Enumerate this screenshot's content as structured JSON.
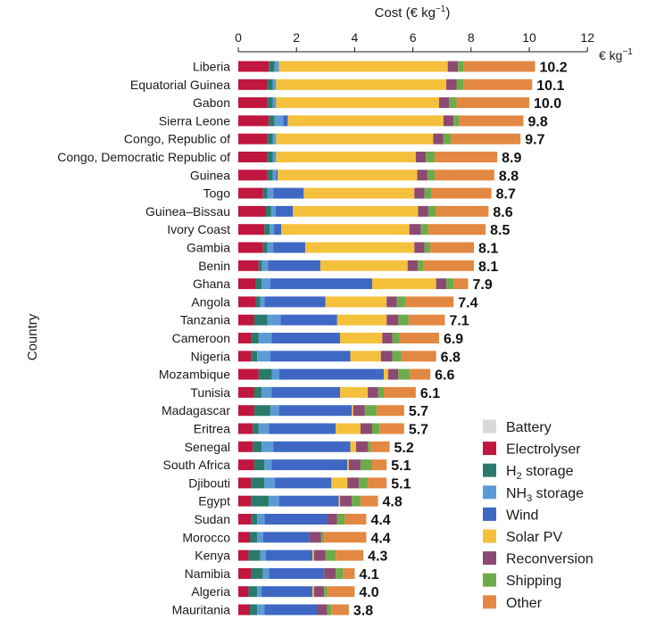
{
  "chart_data": {
    "type": "bar",
    "orientation": "horizontal",
    "stacked": true,
    "title": "",
    "xlabel": "Cost (€ kg",
    "xlabel_sup": "−1",
    "xlabel_close": ")",
    "ylabel": "Country",
    "unit_label": "€ kg",
    "unit_sup": "−1",
    "xlim": [
      0,
      12
    ],
    "x_ticks": [
      "0",
      "2",
      "4",
      "6",
      "8",
      "10",
      "12"
    ],
    "legend": {
      "position": "bottom-right",
      "entries": [
        {
          "key": "battery",
          "label": "Battery",
          "sub": ""
        },
        {
          "key": "electrolyser",
          "label": "Electrolyser",
          "sub": ""
        },
        {
          "key": "h2_storage",
          "label": "H",
          "sub": "2",
          "label_rest": " storage"
        },
        {
          "key": "nh3_storage",
          "label": "NH",
          "sub": "3",
          "label_rest": " storage"
        },
        {
          "key": "wind",
          "label": "Wind",
          "sub": ""
        },
        {
          "key": "solar_pv",
          "label": "Solar PV",
          "sub": ""
        },
        {
          "key": "reconversion",
          "label": "Reconversion",
          "sub": ""
        },
        {
          "key": "shipping",
          "label": "Shipping",
          "sub": ""
        },
        {
          "key": "other",
          "label": "Other",
          "sub": ""
        }
      ]
    },
    "colors": {
      "battery": "#d9d9d9",
      "electrolyser": "#c0163f",
      "h2_storage": "#2a7a6b",
      "nh3_storage": "#5b9bd5",
      "wind": "#3f68c4",
      "solar_pv": "#f5c13c",
      "reconversion": "#8c4a72",
      "shipping": "#6cab4c",
      "other": "#e38842"
    },
    "component_order": [
      "battery",
      "electrolyser",
      "h2_storage",
      "nh3_storage",
      "wind",
      "solar_pv",
      "reconversion",
      "shipping",
      "other"
    ],
    "countries": [
      {
        "name": "Liberia",
        "total": "10.2",
        "values": {
          "battery": 0,
          "electrolyser": 1.05,
          "h2_storage": 0.2,
          "nh3_storage": 0.15,
          "wind": 0,
          "solar_pv": 5.8,
          "reconversion": 0.35,
          "shipping": 0.2,
          "other": 2.45
        }
      },
      {
        "name": "Equatorial Guinea",
        "total": "10.1",
        "values": {
          "battery": 0,
          "electrolyser": 1.0,
          "h2_storage": 0.18,
          "nh3_storage": 0.12,
          "wind": 0,
          "solar_pv": 5.85,
          "reconversion": 0.35,
          "shipping": 0.25,
          "other": 2.35
        }
      },
      {
        "name": "Gabon",
        "total": "10.0",
        "values": {
          "battery": 0,
          "electrolyser": 1.0,
          "h2_storage": 0.18,
          "nh3_storage": 0.12,
          "wind": 0,
          "solar_pv": 5.6,
          "reconversion": 0.35,
          "shipping": 0.25,
          "other": 2.5
        }
      },
      {
        "name": "Sierra Leone",
        "total": "9.8",
        "values": {
          "battery": 0,
          "electrolyser": 1.05,
          "h2_storage": 0.2,
          "nh3_storage": 0.3,
          "wind": 0.15,
          "solar_pv": 5.35,
          "reconversion": 0.35,
          "shipping": 0.2,
          "other": 2.2
        }
      },
      {
        "name": "Congo, Republic of",
        "total": "9.7",
        "values": {
          "battery": 0,
          "electrolyser": 1.0,
          "h2_storage": 0.18,
          "nh3_storage": 0.12,
          "wind": 0,
          "solar_pv": 5.4,
          "reconversion": 0.35,
          "shipping": 0.25,
          "other": 2.4
        }
      },
      {
        "name": "Congo, Democratic Republic of",
        "total": "8.9",
        "values": {
          "battery": 0,
          "electrolyser": 1.0,
          "h2_storage": 0.18,
          "nh3_storage": 0.12,
          "wind": 0,
          "solar_pv": 4.8,
          "reconversion": 0.35,
          "shipping": 0.3,
          "other": 2.15
        }
      },
      {
        "name": "Guinea",
        "total": "8.8",
        "values": {
          "battery": 0,
          "electrolyser": 1.0,
          "h2_storage": 0.18,
          "nh3_storage": 0.12,
          "wind": 0.05,
          "solar_pv": 4.8,
          "reconversion": 0.35,
          "shipping": 0.25,
          "other": 2.05
        }
      },
      {
        "name": "Togo",
        "total": "8.7",
        "values": {
          "battery": 0,
          "electrolyser": 0.85,
          "h2_storage": 0.15,
          "nh3_storage": 0.2,
          "wind": 1.05,
          "solar_pv": 3.8,
          "reconversion": 0.35,
          "shipping": 0.25,
          "other": 2.05
        }
      },
      {
        "name": "Guinea–Bissau",
        "total": "8.6",
        "values": {
          "battery": 0,
          "electrolyser": 0.95,
          "h2_storage": 0.18,
          "nh3_storage": 0.15,
          "wind": 0.6,
          "solar_pv": 4.3,
          "reconversion": 0.35,
          "shipping": 0.25,
          "other": 1.82
        }
      },
      {
        "name": "Ivory Coast",
        "total": "8.5",
        "values": {
          "battery": 0,
          "electrolyser": 0.9,
          "h2_storage": 0.18,
          "nh3_storage": 0.15,
          "wind": 0.25,
          "solar_pv": 4.4,
          "reconversion": 0.4,
          "shipping": 0.25,
          "other": 1.97
        }
      },
      {
        "name": "Gambia",
        "total": "8.1",
        "values": {
          "battery": 0,
          "electrolyser": 0.85,
          "h2_storage": 0.15,
          "nh3_storage": 0.2,
          "wind": 1.1,
          "solar_pv": 3.75,
          "reconversion": 0.35,
          "shipping": 0.2,
          "other": 1.5
        }
      },
      {
        "name": "Benin",
        "total": "8.1",
        "values": {
          "battery": 0,
          "electrolyser": 0.7,
          "h2_storage": 0.12,
          "nh3_storage": 0.2,
          "wind": 1.8,
          "solar_pv": 3.0,
          "reconversion": 0.35,
          "shipping": 0.2,
          "other": 1.73
        }
      },
      {
        "name": "Ghana",
        "total": "7.9",
        "values": {
          "battery": 0,
          "electrolyser": 0.6,
          "h2_storage": 0.2,
          "nh3_storage": 0.3,
          "wind": 3.5,
          "solar_pv": 2.2,
          "reconversion": 0.35,
          "shipping": 0.25,
          "other": 0.5
        }
      },
      {
        "name": "Angola",
        "total": "7.4",
        "values": {
          "battery": 0,
          "electrolyser": 0.6,
          "h2_storage": 0.15,
          "nh3_storage": 0.15,
          "wind": 2.1,
          "solar_pv": 2.1,
          "reconversion": 0.35,
          "shipping": 0.3,
          "other": 1.65
        }
      },
      {
        "name": "Tanzania",
        "total": "7.1",
        "values": {
          "battery": 0,
          "electrolyser": 0.55,
          "h2_storage": 0.45,
          "nh3_storage": 0.45,
          "wind": 1.95,
          "solar_pv": 1.7,
          "reconversion": 0.4,
          "shipping": 0.35,
          "other": 1.25
        }
      },
      {
        "name": "Cameroon",
        "total": "6.9",
        "values": {
          "battery": 0,
          "electrolyser": 0.45,
          "h2_storage": 0.25,
          "nh3_storage": 0.45,
          "wind": 2.35,
          "solar_pv": 1.45,
          "reconversion": 0.35,
          "shipping": 0.25,
          "other": 1.35
        }
      },
      {
        "name": "Nigeria",
        "total": "6.8",
        "values": {
          "battery": 0,
          "electrolyser": 0.45,
          "h2_storage": 0.2,
          "nh3_storage": 0.45,
          "wind": 2.75,
          "solar_pv": 1.05,
          "reconversion": 0.4,
          "shipping": 0.3,
          "other": 1.2
        }
      },
      {
        "name": "Mozambique",
        "total": "6.6",
        "values": {
          "battery": 0,
          "electrolyser": 0.7,
          "h2_storage": 0.45,
          "nh3_storage": 0.25,
          "wind": 3.6,
          "solar_pv": 0.15,
          "reconversion": 0.35,
          "shipping": 0.4,
          "other": 0.7
        }
      },
      {
        "name": "Tunisia",
        "total": "6.1",
        "values": {
          "battery": 0,
          "electrolyser": 0.55,
          "h2_storage": 0.25,
          "nh3_storage": 0.35,
          "wind": 2.35,
          "solar_pv": 0.95,
          "reconversion": 0.35,
          "shipping": 0.2,
          "other": 1.1
        }
      },
      {
        "name": "Madagascar",
        "total": "5.7",
        "values": {
          "battery": 0,
          "electrolyser": 0.55,
          "h2_storage": 0.55,
          "nh3_storage": 0.3,
          "wind": 2.5,
          "solar_pv": 0.05,
          "reconversion": 0.4,
          "shipping": 0.4,
          "other": 0.95
        }
      },
      {
        "name": "Eritrea",
        "total": "5.7",
        "values": {
          "battery": 0,
          "electrolyser": 0.5,
          "h2_storage": 0.2,
          "nh3_storage": 0.35,
          "wind": 2.3,
          "solar_pv": 0.85,
          "reconversion": 0.4,
          "shipping": 0.25,
          "other": 0.85
        }
      },
      {
        "name": "Senegal",
        "total": "5.2",
        "values": {
          "battery": 0,
          "electrolyser": 0.5,
          "h2_storage": 0.3,
          "nh3_storage": 0.4,
          "wind": 2.65,
          "solar_pv": 0.2,
          "reconversion": 0.4,
          "shipping": 0.1,
          "other": 0.65
        }
      },
      {
        "name": "South Africa",
        "total": "5.1",
        "values": {
          "battery": 0,
          "electrolyser": 0.55,
          "h2_storage": 0.35,
          "nh3_storage": 0.25,
          "wind": 2.6,
          "solar_pv": 0.05,
          "reconversion": 0.4,
          "shipping": 0.4,
          "other": 0.5
        }
      },
      {
        "name": "Djibouti",
        "total": "5.1",
        "values": {
          "battery": 0,
          "electrolyser": 0.45,
          "h2_storage": 0.45,
          "nh3_storage": 0.35,
          "wind": 1.95,
          "solar_pv": 0.55,
          "reconversion": 0.4,
          "shipping": 0.3,
          "other": 0.65
        }
      },
      {
        "name": "Egypt",
        "total": "4.8",
        "values": {
          "battery": 0,
          "electrolyser": 0.45,
          "h2_storage": 0.6,
          "nh3_storage": 0.35,
          "wind": 2.05,
          "solar_pv": 0.05,
          "reconversion": 0.4,
          "shipping": 0.3,
          "other": 0.6
        }
      },
      {
        "name": "Sudan",
        "total": "4.4",
        "values": {
          "battery": 0,
          "electrolyser": 0.45,
          "h2_storage": 0.2,
          "nh3_storage": 0.25,
          "wind": 2.15,
          "solar_pv": 0,
          "reconversion": 0.35,
          "shipping": 0.25,
          "other": 0.75
        }
      },
      {
        "name": "Morocco",
        "total": "4.4",
        "values": {
          "battery": 0,
          "electrolyser": 0.4,
          "h2_storage": 0.25,
          "nh3_storage": 0.2,
          "wind": 1.6,
          "solar_pv": 0,
          "reconversion": 0.4,
          "shipping": 0.1,
          "other": 1.45
        }
      },
      {
        "name": "Kenya",
        "total": "4.3",
        "values": {
          "battery": 0,
          "electrolyser": 0.35,
          "h2_storage": 0.4,
          "nh3_storage": 0.2,
          "wind": 1.6,
          "solar_pv": 0.05,
          "reconversion": 0.4,
          "shipping": 0.35,
          "other": 0.95
        }
      },
      {
        "name": "Namibia",
        "total": "4.1",
        "values": {
          "battery": 0,
          "electrolyser": 0.45,
          "h2_storage": 0.4,
          "nh3_storage": 0.2,
          "wind": 1.9,
          "solar_pv": 0,
          "reconversion": 0.4,
          "shipping": 0.25,
          "other": 0.4
        }
      },
      {
        "name": "Algeria",
        "total": "4.0",
        "values": {
          "battery": 0,
          "electrolyser": 0.35,
          "h2_storage": 0.3,
          "nh3_storage": 0.15,
          "wind": 1.75,
          "solar_pv": 0.05,
          "reconversion": 0.35,
          "shipping": 0.1,
          "other": 0.95
        }
      },
      {
        "name": "Mauritania",
        "total": "3.8",
        "values": {
          "battery": 0,
          "electrolyser": 0.4,
          "h2_storage": 0.25,
          "nh3_storage": 0.25,
          "wind": 1.8,
          "solar_pv": 0,
          "reconversion": 0.35,
          "shipping": 0.15,
          "other": 0.6
        }
      }
    ]
  }
}
